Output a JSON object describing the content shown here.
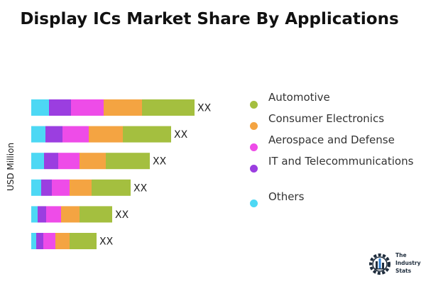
{
  "header": {
    "title": "Display ICs Market Share By Applications"
  },
  "chart_data": {
    "type": "bar",
    "orientation": "horizontal",
    "stacked": true,
    "title": "Display ICs Market Share By Applications",
    "ylabel": "USD Million",
    "categories": [
      "",
      "",
      "",
      "",
      "",
      ""
    ],
    "data_labels": [
      "XX",
      "XX",
      "XX",
      "XX",
      "XX",
      "XX"
    ],
    "series": [
      {
        "name": "Others",
        "color": "#4dd8f4",
        "values": [
          25,
          20,
          18,
          14,
          9,
          7
        ]
      },
      {
        "name": "IT and Telecommunications",
        "color": "#9b3ee0",
        "values": [
          31,
          24,
          20,
          15,
          12,
          10
        ]
      },
      {
        "name": "Aerospace and Defense",
        "color": "#ee4ce8",
        "values": [
          46,
          37,
          30,
          25,
          21,
          17
        ]
      },
      {
        "name": "Consumer Electronics",
        "color": "#f4a442",
        "values": [
          54,
          48,
          37,
          31,
          26,
          20
        ]
      },
      {
        "name": "Automotive",
        "color": "#a4bf3f",
        "values": [
          74,
          68,
          62,
          55,
          46,
          38
        ]
      }
    ],
    "grid": false,
    "legend_position": "right"
  },
  "legend": [
    {
      "label": "Automotive",
      "color": "#a4bf3f"
    },
    {
      "label": "Consumer Electronics",
      "color": "#f4a442"
    },
    {
      "label": "Aerospace and Defense",
      "color": "#ee4ce8"
    },
    {
      "label": "IT and Telecommunications",
      "color": "#9b3ee0"
    },
    {
      "label": "Others",
      "color": "#4dd8f4"
    }
  ],
  "logo": {
    "icon": "gear-city-logo-icon",
    "text": "The Industry Stats"
  }
}
